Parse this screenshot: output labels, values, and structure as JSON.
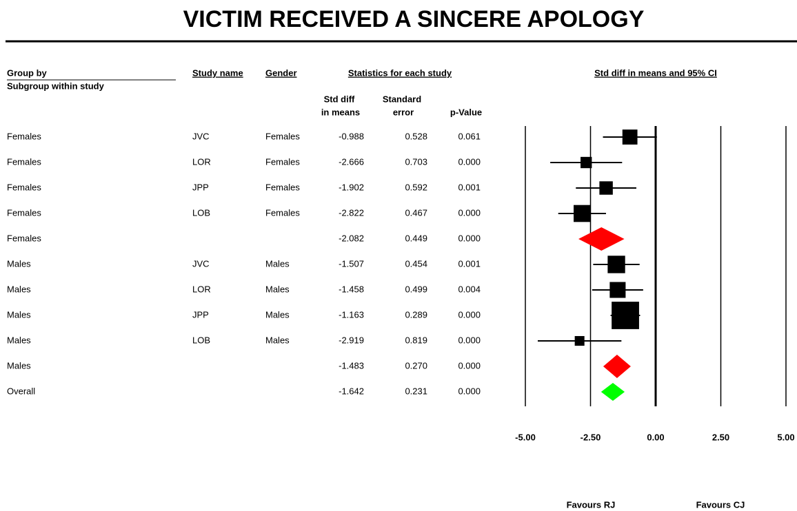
{
  "chart_data": {
    "type": "forest",
    "title": "VICTIM RECEIVED A SINCERE APOLOGY",
    "headers": {
      "group_by": "Group by",
      "subgroup": "Subgroup within study",
      "study_name": "Study name",
      "gender": "Gender",
      "statistics": "Statistics for each study",
      "std_diff": [
        "Std diff",
        "in means"
      ],
      "standard_error": [
        "Standard",
        "error"
      ],
      "p_value": "p-Value",
      "plot": "Std diff in means and 95% CI"
    },
    "groups": [
      "Females",
      "Females",
      "Females",
      "Females",
      "Females",
      "Males",
      "Males",
      "Males",
      "Males",
      "Males",
      "Overall"
    ],
    "studies": [
      "JVC",
      "LOR",
      "JPP",
      "LOB",
      null,
      "JVC",
      "LOR",
      "JPP",
      "LOB",
      null,
      null
    ],
    "genders": [
      "Females",
      "Females",
      "Females",
      "Females",
      null,
      "Males",
      "Males",
      "Males",
      "Males",
      null,
      null
    ],
    "row_types": [
      "study",
      "study",
      "study",
      "study",
      "subgroup",
      "study",
      "study",
      "study",
      "study",
      "subgroup",
      "overall"
    ],
    "values": [
      -0.988,
      -2.666,
      -1.902,
      -2.822,
      -2.082,
      -1.507,
      -1.458,
      -1.163,
      -2.919,
      -1.483,
      -1.642
    ],
    "errors": [
      0.528,
      0.703,
      0.592,
      0.467,
      0.449,
      0.454,
      0.499,
      0.289,
      0.819,
      0.27,
      0.231
    ],
    "error_labels": [
      "0.528",
      "0.703",
      "0.592",
      "0.467",
      "0.449",
      "0.454",
      "0.499",
      "0.289",
      "0.819",
      "0.270",
      "0.231"
    ],
    "p_values": [
      "0.061",
      "0.000",
      "0.001",
      "0.000",
      "0.000",
      "0.001",
      "0.004",
      "0.000",
      "0.000",
      "0.000",
      "0.000"
    ],
    "colors": {
      "study": "#000000",
      "subgroup": "#ff0000",
      "overall": "#00ff00"
    },
    "xlim": [
      -5,
      5
    ],
    "xticks": [
      {
        "value": -5,
        "label": "-5.00"
      },
      {
        "value": -2.5,
        "label": "-2.50"
      },
      {
        "value": 0,
        "label": "0.00"
      },
      {
        "value": 2.5,
        "label": "2.50"
      },
      {
        "value": 5,
        "label": "5.00"
      }
    ],
    "grid": true,
    "favours": [
      "Favours RJ",
      "Favours CJ"
    ]
  }
}
